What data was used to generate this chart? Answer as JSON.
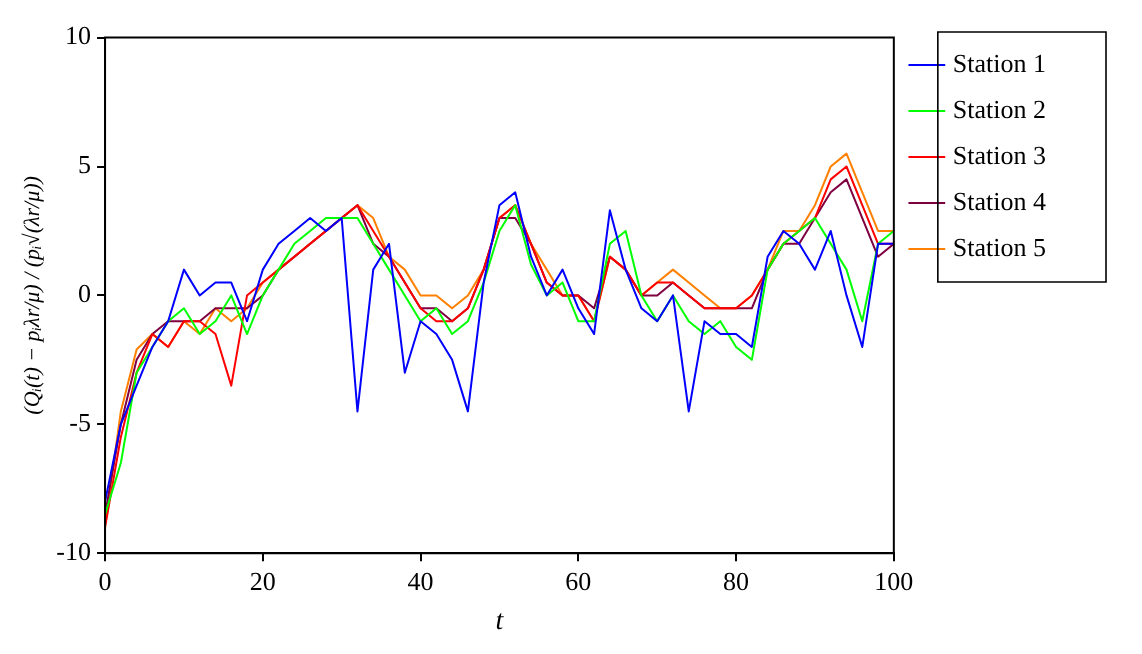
{
  "chart_data": {
    "type": "line",
    "xlabel": "t",
    "ylabel": "(Qᵢ(t) − pᵢλr/μ) / (pᵢ√(λr/μ))",
    "x": [
      0,
      2,
      4,
      6,
      8,
      10,
      12,
      14,
      16,
      18,
      20,
      22,
      24,
      26,
      28,
      30,
      32,
      34,
      36,
      38,
      40,
      42,
      44,
      46,
      48,
      50,
      52,
      54,
      56,
      58,
      60,
      62,
      64,
      66,
      68,
      70,
      72,
      74,
      76,
      78,
      80,
      82,
      84,
      86,
      88,
      90,
      92,
      94,
      96,
      98,
      100
    ],
    "series": [
      {
        "name": "Station 1",
        "color": "#0000ff",
        "values": [
          -8,
          -5,
          -3.5,
          -2,
          -1,
          1,
          0,
          0.5,
          0.5,
          -1,
          1,
          2,
          2.5,
          3,
          2.5,
          3,
          -4.5,
          1,
          2,
          -3,
          -1,
          -1.5,
          -2.5,
          -4.5,
          0.5,
          3.5,
          4,
          1.5,
          0,
          1,
          -0.5,
          -1.5,
          3.3,
          1,
          -0.5,
          -1,
          0,
          -4.5,
          -1,
          -1.5,
          -1.5,
          -2,
          1.5,
          2.5,
          2,
          1,
          2.5,
          0,
          -2,
          2,
          2
        ]
      },
      {
        "name": "Station 2",
        "color": "#00ff00",
        "values": [
          -8.5,
          -6.5,
          -3,
          -2,
          -1,
          -0.5,
          -1.5,
          -1,
          0,
          -1.5,
          0,
          1,
          2,
          2.5,
          3,
          3,
          3,
          2,
          1,
          0,
          -1,
          -0.5,
          -1.5,
          -1,
          0.5,
          2.5,
          3.5,
          1.2,
          0,
          0.5,
          -1,
          -1,
          2,
          2.5,
          0,
          -1,
          0,
          -1,
          -1.5,
          -1,
          -2,
          -2.5,
          1,
          2,
          2.5,
          3,
          2,
          1,
          -1,
          2,
          2.5
        ]
      },
      {
        "name": "Station 3",
        "color": "#ff0000",
        "values": [
          -9,
          -5.5,
          -3,
          -1.5,
          -2,
          -1,
          -1,
          -1.5,
          -3.5,
          0,
          0.5,
          1,
          1.5,
          2,
          2.5,
          3,
          3.5,
          2.5,
          1.5,
          0.5,
          -0.5,
          -1,
          -1,
          -0.5,
          1,
          3,
          3.5,
          2,
          0.5,
          0,
          0,
          -1,
          1.5,
          1,
          0,
          0.5,
          0.5,
          0,
          -0.5,
          -0.5,
          -0.5,
          0,
          1,
          2,
          2.5,
          3,
          4.5,
          5,
          3.5,
          2,
          2
        ]
      },
      {
        "name": "Station 4",
        "color": "#7f0040",
        "values": [
          -8.5,
          -5,
          -2.5,
          -1.5,
          -1,
          -1,
          -1,
          -0.5,
          -0.5,
          -0.5,
          0,
          1,
          1.5,
          2,
          2.5,
          3,
          3.5,
          2,
          1.5,
          0.5,
          -0.5,
          -0.5,
          -1,
          -0.5,
          1,
          3,
          3,
          2,
          0.5,
          0,
          0,
          -0.5,
          1.5,
          1,
          0,
          0,
          0.5,
          0,
          -0.5,
          -0.5,
          -0.5,
          -0.5,
          1,
          2,
          2,
          3,
          4,
          4.5,
          3,
          1.5,
          2
        ]
      },
      {
        "name": "Station 5",
        "color": "#ff8000",
        "values": [
          -8.9,
          -4.5,
          -2.1,
          -1.5,
          -2,
          -1,
          -1.5,
          -0.5,
          -1,
          -0.5,
          0.5,
          1,
          1.5,
          2,
          2.5,
          3,
          3.5,
          3,
          1.5,
          1,
          0,
          0,
          -0.5,
          0,
          1,
          3,
          3.5,
          2,
          1,
          0,
          0,
          -1,
          1.5,
          1,
          0,
          0.5,
          1,
          0.5,
          0,
          -0.5,
          -0.5,
          0,
          1,
          2.5,
          2.5,
          3.5,
          5,
          5.5,
          4,
          2.5,
          2.5
        ]
      }
    ],
    "xlim": [
      0,
      100
    ],
    "xticks": [
      0,
      20,
      40,
      60,
      80,
      100
    ],
    "ylim": [
      -10,
      10
    ],
    "yticks": [
      -10,
      -5,
      0,
      5,
      10
    ],
    "grid": false,
    "legend": "right",
    "marker": "none",
    "line_style": "solid"
  }
}
